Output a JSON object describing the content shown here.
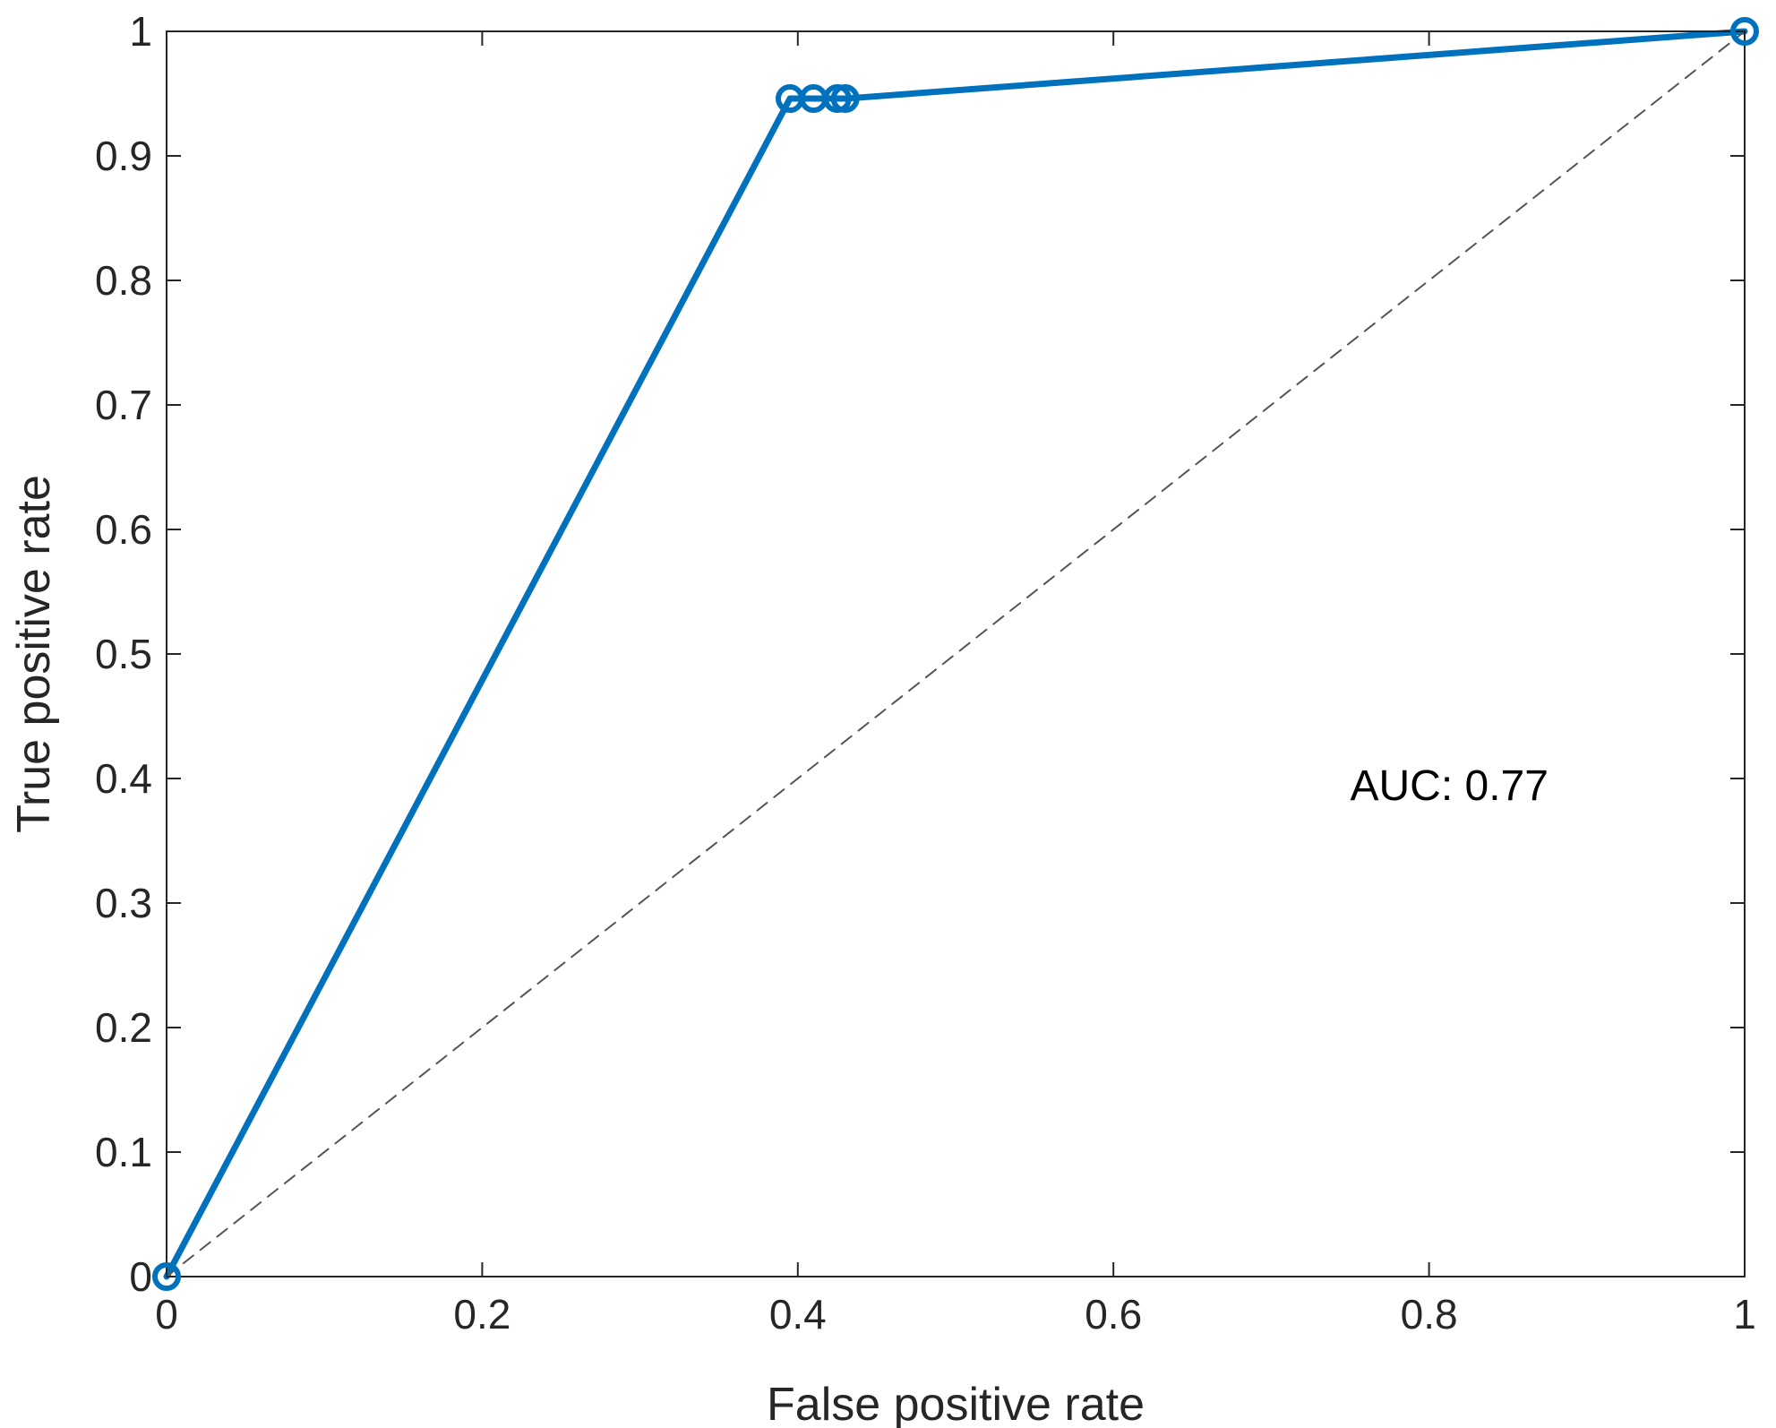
{
  "chart_data": {
    "type": "line",
    "title": "",
    "xlabel": "False positive rate",
    "ylabel": "True positive rate",
    "xlim": [
      0,
      1
    ],
    "ylim": [
      0,
      1
    ],
    "xticks": [
      0,
      0.2,
      0.4,
      0.6,
      0.8,
      1
    ],
    "yticks": [
      0,
      0.1,
      0.2,
      0.3,
      0.4,
      0.5,
      0.6,
      0.7,
      0.8,
      0.9,
      1
    ],
    "xtick_labels": [
      "0",
      "0.2",
      "0.4",
      "0.6",
      "0.8",
      "1"
    ],
    "ytick_labels": [
      "0",
      "0.1",
      "0.2",
      "0.3",
      "0.4",
      "0.5",
      "0.6",
      "0.7",
      "0.8",
      "0.9",
      "1"
    ],
    "grid": false,
    "series": [
      {
        "color": "#0072BD",
        "marker": "circle",
        "x": [
          0,
          0.395,
          0.41,
          0.425,
          0.43,
          1
        ],
        "y": [
          0,
          0.946,
          0.946,
          0.946,
          0.946,
          1
        ]
      },
      {
        "color": "#555555",
        "style": "dashed",
        "x": [
          0,
          1
        ],
        "y": [
          0,
          1
        ]
      }
    ],
    "annotations": [
      {
        "text": "AUC: 0.77",
        "x": 0.75,
        "y": 0.395
      }
    ]
  }
}
